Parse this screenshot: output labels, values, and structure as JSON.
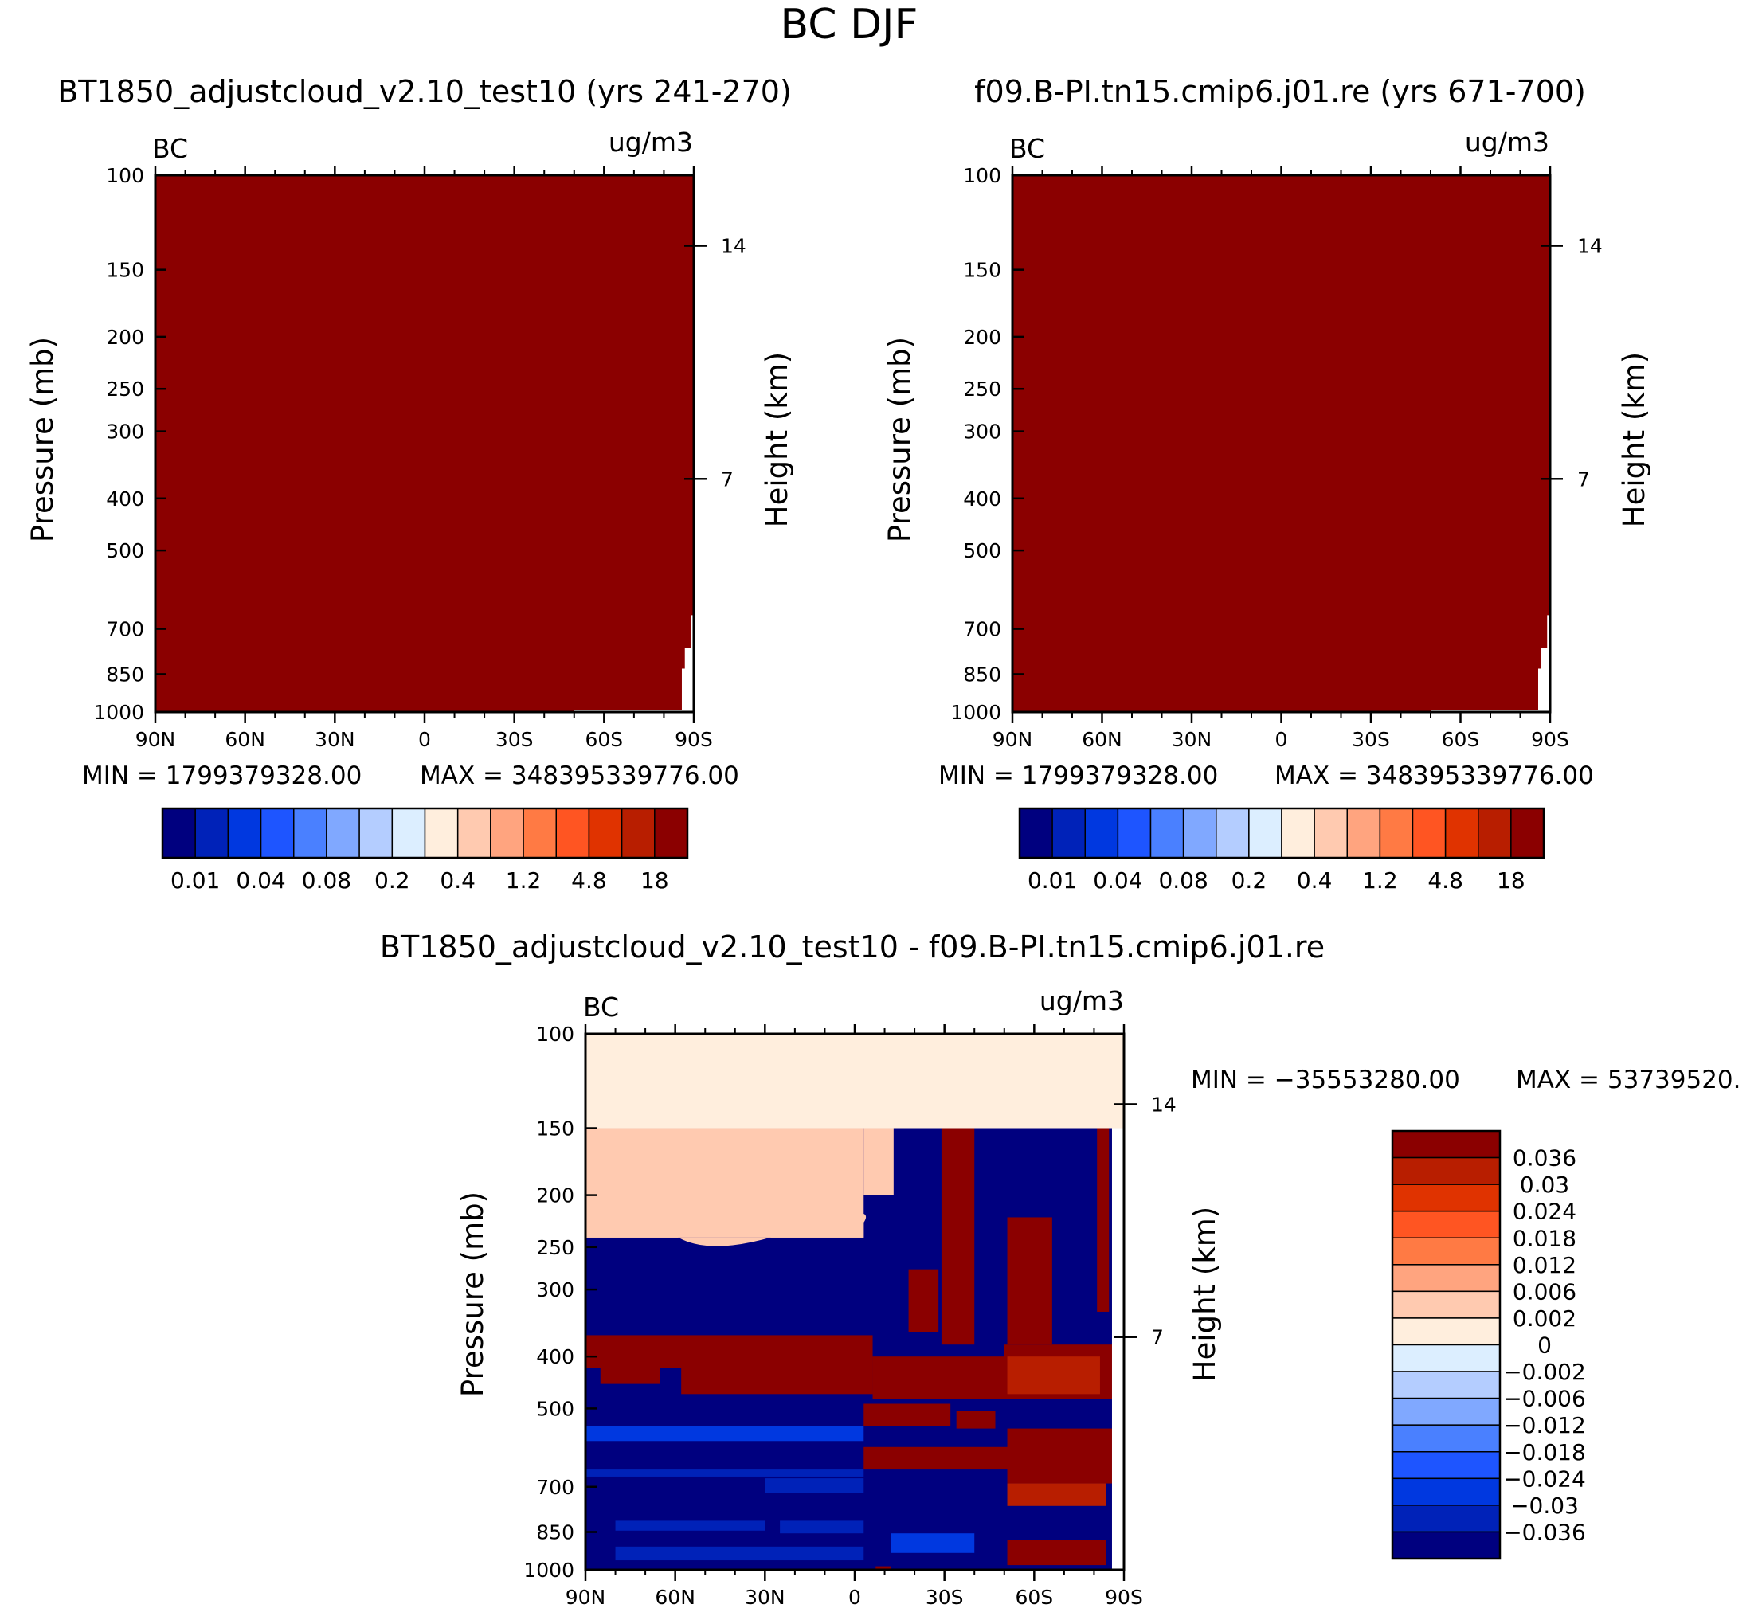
{
  "chart_data": {
    "type": "contour",
    "title": "BC DJF",
    "panels": [
      {
        "id": "case",
        "subtitle": "BT1850_adjustcloud_v2.10_test10 (yrs 241-270)",
        "left_label": "BC",
        "right_label": "ug/m3",
        "ylabel": "Pressure (mb)",
        "y2label": "Height (km)",
        "pressure_ticks": [
          "100",
          "150",
          "200",
          "250",
          "300",
          "400",
          "500",
          "700",
          "850",
          "1000"
        ],
        "height_ticks": [
          "14",
          "7"
        ],
        "x_ticks": [
          "90N",
          "60N",
          "30N",
          "0",
          "30S",
          "60S",
          "90S"
        ],
        "min_text": "MIN = 1799379328.00",
        "max_text": "MAX = 348395339776.00",
        "fill_description": "entire field exceeds top contour level (>18)",
        "colorbar_labels": [
          "0.01",
          "0.04",
          "0.08",
          "0.2",
          "0.4",
          "1.2",
          "4.8",
          "18"
        ]
      },
      {
        "id": "control",
        "subtitle": "f09.B-PI.tn15.cmip6.j01.re (yrs 671-700)",
        "left_label": "BC",
        "right_label": "ug/m3",
        "ylabel": "Pressure (mb)",
        "y2label": "Height (km)",
        "pressure_ticks": [
          "100",
          "150",
          "200",
          "250",
          "300",
          "400",
          "500",
          "700",
          "850",
          "1000"
        ],
        "height_ticks": [
          "14",
          "7"
        ],
        "x_ticks": [
          "90N",
          "60N",
          "30N",
          "0",
          "30S",
          "60S",
          "90S"
        ],
        "min_text": "MIN = 1799379328.00",
        "max_text": "MAX = 348395339776.00",
        "fill_description": "entire field exceeds top contour level (>18)",
        "colorbar_labels": [
          "0.01",
          "0.04",
          "0.08",
          "0.2",
          "0.4",
          "1.2",
          "4.8",
          "18"
        ]
      },
      {
        "id": "difference",
        "subtitle": "BT1850_adjustcloud_v2.10_test10 - f09.B-PI.tn15.cmip6.j01.re",
        "left_label": "BC",
        "right_label": "ug/m3",
        "ylabel": "Pressure (mb)",
        "y2label": "Height (km)",
        "pressure_ticks": [
          "100",
          "150",
          "200",
          "250",
          "300",
          "400",
          "500",
          "700",
          "850",
          "1000"
        ],
        "height_ticks": [
          "14",
          "7"
        ],
        "x_ticks": [
          "90N",
          "60N",
          "30N",
          "0",
          "30S",
          "60S",
          "90S"
        ],
        "min_text": "MIN = -35553280.00",
        "max_text": "MAX = 53739520.",
        "colorbar_labels": [
          "0.036",
          "0.03",
          "0.024",
          "0.018",
          "0.012",
          "0.006",
          "0.002",
          "0",
          "-0.002",
          "-0.006",
          "-0.012",
          "-0.018",
          "-0.024",
          "-0.03",
          "-0.036"
        ]
      }
    ],
    "abs_colorbar_colors": [
      "#00007f",
      "#0022b8",
      "#0038e0",
      "#1e55ff",
      "#4a80ff",
      "#80a8ff",
      "#b4cdff",
      "#dceeff",
      "#ffeedd",
      "#ffcab0",
      "#ffa47f",
      "#ff7a44",
      "#ff5522",
      "#e03300",
      "#b81e00",
      "#8b0000"
    ],
    "diff_colorbar_colors": [
      "#8b0000",
      "#b81e00",
      "#e03300",
      "#ff5522",
      "#ff7a44",
      "#ffa47f",
      "#ffcab0",
      "#ffeedd",
      "#dceeff",
      "#b4cdff",
      "#80a8ff",
      "#4a80ff",
      "#1e55ff",
      "#0038e0",
      "#0022b8",
      "#00007f"
    ]
  }
}
